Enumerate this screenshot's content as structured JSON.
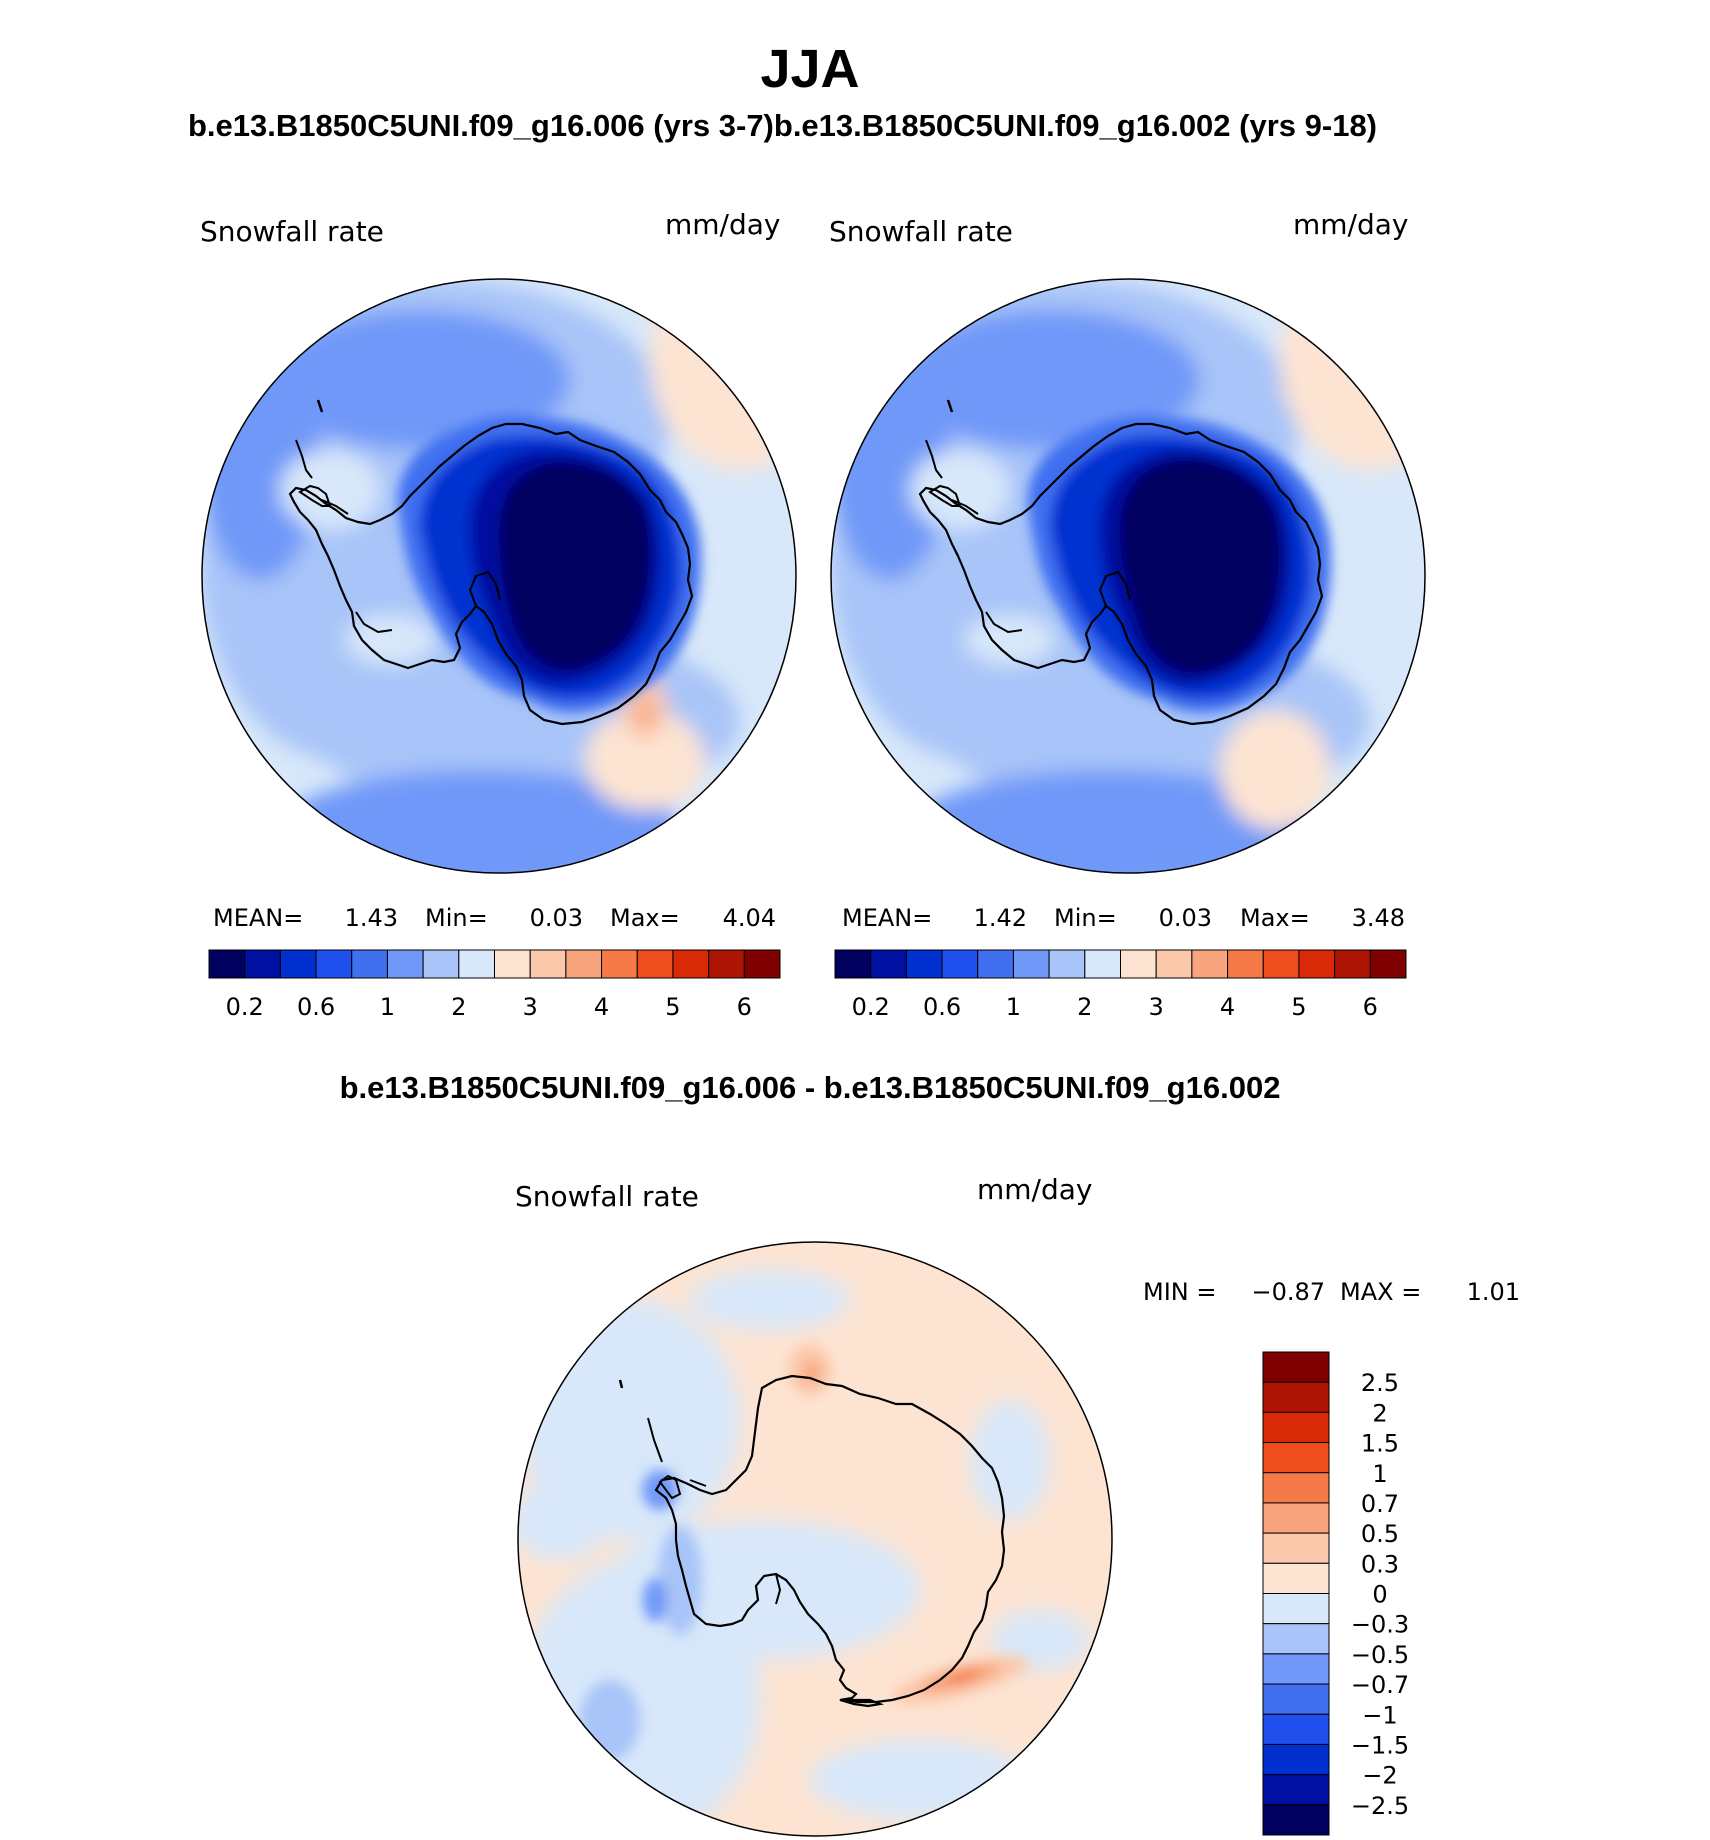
{
  "figure": {
    "title": "JJA",
    "subtitle": "b.e13.B1850C5UNI.f09_g16.006 (yrs 3-7)b.e13.B1850C5UNI.f09_g16.002 (yrs 9-18)",
    "diff_title": "b.e13.B1850C5UNI.f09_g16.006 - b.e13.B1850C5UNI.f09_g16.002"
  },
  "panels": [
    {
      "variable": "Snowfall rate",
      "units": "mm/day",
      "stats": {
        "mean_label": "MEAN=",
        "mean": "1.43",
        "min_label": "Min=",
        "min": "0.03",
        "max_label": "Max=",
        "max": "4.04"
      }
    },
    {
      "variable": "Snowfall rate",
      "units": "mm/day",
      "stats": {
        "mean_label": "MEAN=",
        "mean": "1.42",
        "min_label": "Min=",
        "min": "0.03",
        "max_label": "Max=",
        "max": "3.48"
      }
    }
  ],
  "diff_panel": {
    "variable": "Snowfall rate",
    "units": "mm/day",
    "min_label": "MIN =",
    "min": "−0.87",
    "max_label": "MAX =",
    "max": "1.01"
  },
  "colorbar_abs": {
    "colors": [
      "#00005f",
      "#0010a0",
      "#0030d0",
      "#1f50ee",
      "#4070f0",
      "#7098f8",
      "#a8c4f8",
      "#d8e8fa",
      "#fde4d2",
      "#fcc8ac",
      "#f8a47c",
      "#f57a48",
      "#ee4e1c",
      "#d82a06",
      "#ae1404",
      "#7e0000"
    ],
    "tick_labels": [
      "0.2",
      "0.6",
      "1",
      "2",
      "3",
      "4",
      "5",
      "6"
    ]
  },
  "colorbar_diff": {
    "colors": [
      "#7e0000",
      "#ae1404",
      "#d82a06",
      "#ee4e1c",
      "#f57a48",
      "#f8a47c",
      "#fcc8ac",
      "#fde4d2",
      "#d8e8fa",
      "#a8c4f8",
      "#7098f8",
      "#4070f0",
      "#1f50ee",
      "#0030d0",
      "#0010a0",
      "#00005f"
    ],
    "tick_labels": [
      "2.5",
      "2",
      "1.5",
      "1",
      "0.7",
      "0.5",
      "0.3",
      "0",
      "−0.3",
      "−0.5",
      "−0.7",
      "−1",
      "−1.5",
      "−2",
      "−2.5"
    ]
  }
}
